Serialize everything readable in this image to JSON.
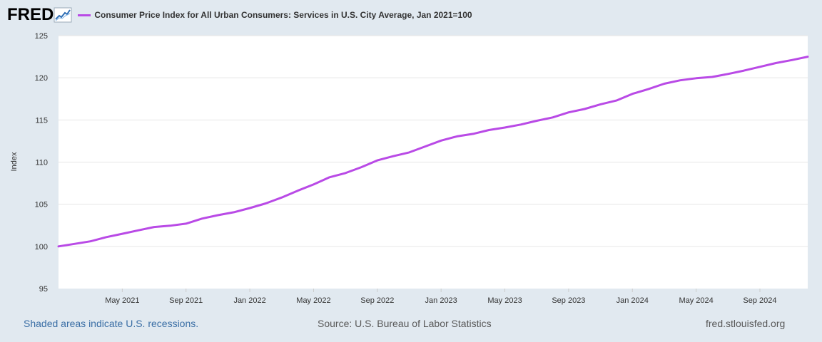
{
  "header": {
    "logo_text": "FRED",
    "legend_label": "Consumer Price Index for All Urban Consumers: Services in U.S. City Average, Jan 2021=100"
  },
  "footer": {
    "recession_note": "Shaded areas indicate U.S. recessions.",
    "source": "Source: U.S. Bureau of Labor Statistics",
    "site": "fred.stlouisfed.org"
  },
  "colors": {
    "series": "#b94ae6",
    "background": "#e1e9f0",
    "plot_background": "#ffffff",
    "gridline": "#e6e6e6"
  },
  "chart_data": {
    "type": "line",
    "title": "Consumer Price Index for All Urban Consumers: Services in U.S. City Average, Jan 2021=100",
    "xlabel": "",
    "ylabel": "Index",
    "grid": true,
    "legend_position": "top-left",
    "ylim": [
      95,
      125
    ],
    "yticks": [
      95,
      100,
      105,
      110,
      115,
      120,
      125
    ],
    "xtick_labels": [
      "May 2021",
      "Sep 2021",
      "Jan 2022",
      "May 2022",
      "Sep 2022",
      "Jan 2023",
      "May 2023",
      "Sep 2023",
      "Jan 2024",
      "May 2024",
      "Sep 2024"
    ],
    "x_start": "2021-01",
    "x_end": "2024-12",
    "series": [
      {
        "name": "Consumer Price Index for All Urban Consumers: Services in U.S. City Average, Jan 2021=100",
        "x": [
          "2021-01",
          "2021-02",
          "2021-03",
          "2021-04",
          "2021-05",
          "2021-06",
          "2021-07",
          "2021-08",
          "2021-09",
          "2021-10",
          "2021-11",
          "2021-12",
          "2022-01",
          "2022-02",
          "2022-03",
          "2022-04",
          "2022-05",
          "2022-06",
          "2022-07",
          "2022-08",
          "2022-09",
          "2022-10",
          "2022-11",
          "2022-12",
          "2023-01",
          "2023-02",
          "2023-03",
          "2023-04",
          "2023-05",
          "2023-06",
          "2023-07",
          "2023-08",
          "2023-09",
          "2023-10",
          "2023-11",
          "2023-12",
          "2024-01",
          "2024-02",
          "2024-03",
          "2024-04",
          "2024-05",
          "2024-06",
          "2024-07",
          "2024-08",
          "2024-09",
          "2024-10",
          "2024-11",
          "2024-12"
        ],
        "values": [
          100.0,
          100.3,
          100.6,
          101.1,
          101.5,
          101.9,
          102.3,
          102.45,
          102.7,
          103.3,
          103.7,
          104.05,
          104.55,
          105.1,
          105.8,
          106.6,
          107.35,
          108.2,
          108.7,
          109.4,
          110.2,
          110.7,
          111.15,
          111.85,
          112.55,
          113.05,
          113.35,
          113.8,
          114.1,
          114.45,
          114.9,
          115.3,
          115.9,
          116.3,
          116.85,
          117.3,
          118.1,
          118.65,
          119.3,
          119.7,
          119.95,
          120.1,
          120.45,
          120.85,
          121.3,
          121.75,
          122.1,
          122.5
        ]
      }
    ]
  }
}
